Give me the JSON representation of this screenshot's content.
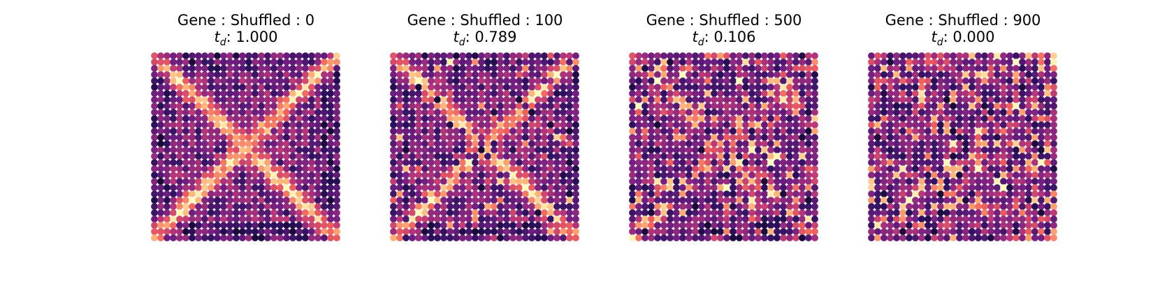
{
  "chart_data": [
    {
      "type": "heatmap",
      "title": "Gene : Shuffled : 0",
      "metric_symbol": "t",
      "metric_subscript": "d",
      "metric_value": "1.000",
      "shuffled": 0,
      "grid": [
        30,
        30
      ],
      "pattern": "X-shaped high-expression spots",
      "colormap": "magma",
      "axes_visible": false
    },
    {
      "type": "heatmap",
      "title": "Gene : Shuffled : 100",
      "metric_symbol": "t",
      "metric_subscript": "d",
      "metric_value": "0.789",
      "shuffled": 100,
      "grid": [
        30,
        30
      ],
      "pattern": "X-shaped high-expression spots, slightly disrupted",
      "colormap": "magma",
      "axes_visible": false
    },
    {
      "type": "heatmap",
      "title": "Gene : Shuffled : 500",
      "metric_symbol": "t",
      "metric_subscript": "d",
      "metric_value": "0.106",
      "shuffled": 500,
      "grid": [
        30,
        30
      ],
      "pattern": "mostly random, faint X remnant",
      "colormap": "magma",
      "axes_visible": false
    },
    {
      "type": "heatmap",
      "title": "Gene : Shuffled : 900",
      "metric_symbol": "t",
      "metric_subscript": "d",
      "metric_value": "0.000",
      "shuffled": 900,
      "grid": [
        30,
        30
      ],
      "pattern": "random",
      "colormap": "magma",
      "axes_visible": false
    }
  ],
  "colors": {
    "magma_stops": [
      "#000004",
      "#2c115f",
      "#721f81",
      "#b73779",
      "#f1605d",
      "#feb078",
      "#fcfdbf"
    ],
    "background": "#ffffff"
  }
}
